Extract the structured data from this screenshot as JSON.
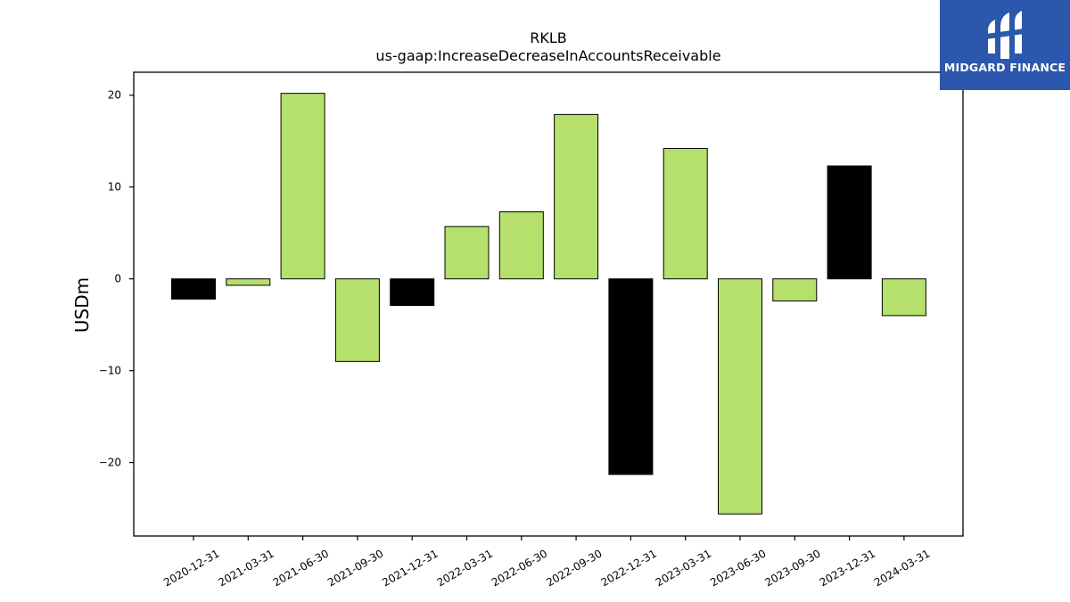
{
  "brand": {
    "name": "MIDGARD FINANCE",
    "bg_color": "#2b58ad"
  },
  "chart_data": {
    "type": "bar",
    "title": "RKLB",
    "subtitle": "us-gaap:IncreaseDecreaseInAccountsReceivable",
    "ylabel": "USDm",
    "xlabel": "",
    "ylim": [
      -28,
      22.5
    ],
    "yticks": [
      -20,
      -10,
      0,
      10,
      20
    ],
    "grid": false,
    "categories": [
      "2020-12-31",
      "2021-03-31",
      "2021-06-30",
      "2021-09-30",
      "2021-12-31",
      "2022-03-31",
      "2022-06-30",
      "2022-09-30",
      "2022-12-31",
      "2023-03-31",
      "2023-06-30",
      "2023-09-30",
      "2023-12-31",
      "2024-03-31"
    ],
    "values": [
      -2.2,
      -0.7,
      20.2,
      -9.0,
      -2.9,
      5.7,
      7.3,
      17.9,
      -21.3,
      14.2,
      -25.6,
      -2.4,
      12.3,
      -4.0
    ],
    "bar_colors": [
      "#000000",
      "#b5e06b",
      "#b5e06b",
      "#b5e06b",
      "#000000",
      "#b5e06b",
      "#b5e06b",
      "#b5e06b",
      "#000000",
      "#b5e06b",
      "#b5e06b",
      "#b5e06b",
      "#000000",
      "#b5e06b"
    ]
  }
}
